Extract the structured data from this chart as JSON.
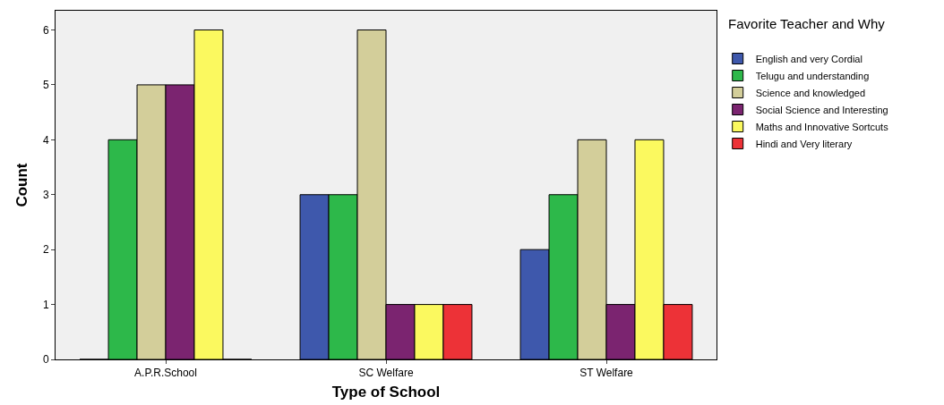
{
  "chart_data": {
    "type": "bar",
    "xlabel": "Type of School",
    "ylabel": "Count",
    "legend_title": "Favorite Teacher and Why",
    "categories": [
      "A.P.R.School",
      "SC Welfare",
      "ST Welfare"
    ],
    "series": [
      {
        "name": "English and very Cordial",
        "color": "#3e58ac",
        "values": [
          0,
          3,
          2
        ]
      },
      {
        "name": "Telugu and understanding",
        "color": "#2db84a",
        "values": [
          4,
          3,
          3
        ]
      },
      {
        "name": "Science and knowledged",
        "color": "#d3ce9a",
        "values": [
          5,
          6,
          4
        ]
      },
      {
        "name": "Social Science and Interesting",
        "color": "#7b2470",
        "values": [
          5,
          1,
          1
        ]
      },
      {
        "name": "Maths and Innovative Sortcuts",
        "color": "#fbf95f",
        "values": [
          6,
          1,
          4
        ]
      },
      {
        "name": "Hindi and Very literary",
        "color": "#ed3237",
        "values": [
          0,
          1,
          1
        ]
      }
    ],
    "ylim": [
      0,
      6.35
    ],
    "yticks": [
      0,
      1,
      2,
      3,
      4,
      5,
      6
    ],
    "grid": false,
    "legend": "top right"
  }
}
